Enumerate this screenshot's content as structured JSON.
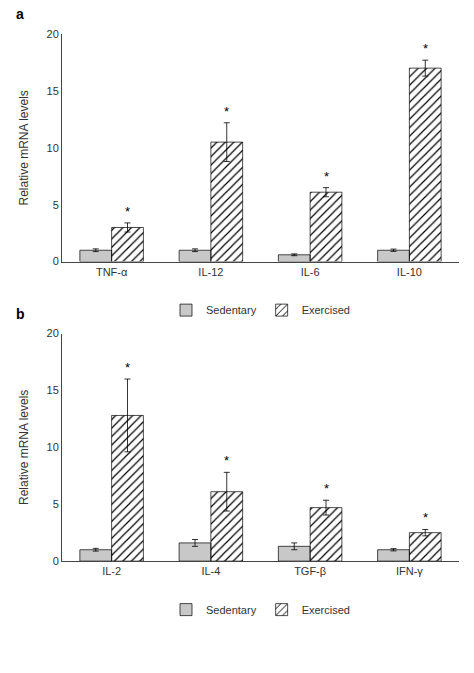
{
  "chart_data": [
    {
      "type": "bar",
      "title": "a",
      "categories": [
        "TNF-α",
        "IL-12",
        "IL-6",
        "IL-10"
      ],
      "series": [
        {
          "name": "Sedentary",
          "color": "#c8c8c8",
          "values": [
            1.0,
            1.0,
            0.6,
            1.0
          ],
          "errors": [
            0.12,
            0.12,
            0.08,
            0.1
          ]
        },
        {
          "name": "Exercised",
          "color": "#a0a0a0",
          "values": [
            3.0,
            10.5,
            6.1,
            17.0
          ],
          "errors": [
            0.4,
            1.7,
            0.4,
            0.7
          ]
        }
      ],
      "ylabel": "Relative mRNA levels",
      "ylim": [
        0,
        20
      ],
      "yticks": [
        0,
        5,
        10,
        15,
        20
      ],
      "grid": false,
      "legend": "bottom",
      "annotations": [
        {
          "text": "*",
          "category": "TNF-α",
          "series": "Exercised"
        },
        {
          "text": "*",
          "category": "IL-12",
          "series": "Exercised"
        },
        {
          "text": "*",
          "category": "IL-6",
          "series": "Exercised"
        },
        {
          "text": "*",
          "category": "IL-10",
          "series": "Exercised"
        }
      ]
    },
    {
      "type": "bar",
      "title": "b",
      "categories": [
        "IL-2",
        "IL-4",
        "TGF-β",
        "IFN-γ"
      ],
      "series": [
        {
          "name": "Sedentary",
          "color": "#c8c8c8",
          "values": [
            1.0,
            1.6,
            1.3,
            1.0
          ],
          "errors": [
            0.12,
            0.3,
            0.3,
            0.1
          ]
        },
        {
          "name": "Exercised",
          "color": "#a0a0a0",
          "values": [
            12.8,
            6.1,
            4.7,
            2.5
          ],
          "errors": [
            3.2,
            1.7,
            0.65,
            0.28
          ]
        }
      ],
      "ylabel": "Relative mRNA levels",
      "ylim": [
        0,
        20
      ],
      "yticks": [
        0,
        5,
        10,
        15,
        20
      ],
      "grid": false,
      "legend": "bottom",
      "annotations": [
        {
          "text": "*",
          "category": "IL-2",
          "series": "Exercised"
        },
        {
          "text": "*",
          "category": "IL-4",
          "series": "Exercised"
        },
        {
          "text": "*",
          "category": "TGF-β",
          "series": "Exercised"
        },
        {
          "text": "*",
          "category": "IFN-γ",
          "series": "Exercised"
        }
      ]
    }
  ]
}
